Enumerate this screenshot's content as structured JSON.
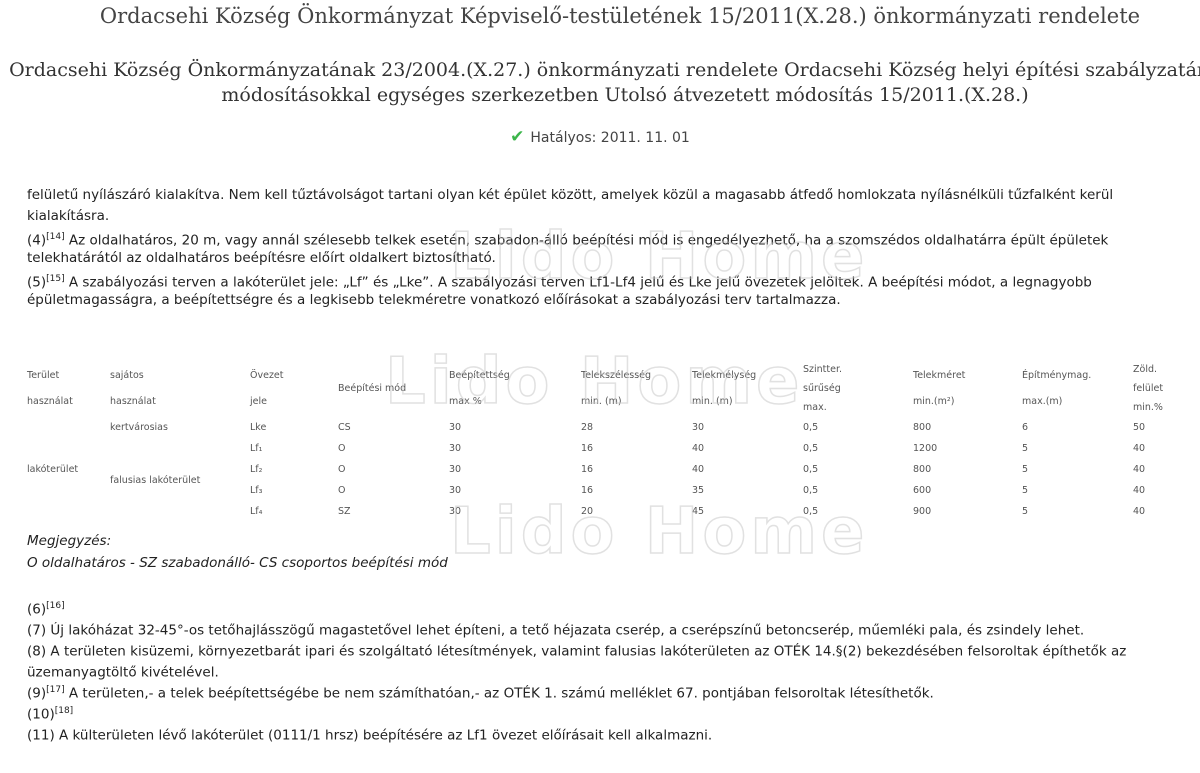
{
  "header": {
    "title": "Ordacsehi Község Önkormányzat Képviselő-testületének 15/2011(X.28.) önkormányzati rendelete",
    "subtitle_lines": [
      "Ordacsehi Község Önkormányzatának 23/2004.(X.27.) önkormányzati rendelete Ordacsehi Község helyi építési szabályzatáról a",
      "módosításokkal egységes szerkezetben Utolsó átvezetett módosítás 15/2011.(X.28.)"
    ],
    "status_icon": "check-icon",
    "status_color": "#3bb54a",
    "status": "Hatályos: 2011. 11. 01"
  },
  "watermark": "Lido Home",
  "paragraphs": [
    "felületű nyílászáró kialakítva. Nem kell tűztávolságot tartani olyan két épület között, amelyek közül a magasabb átfedő homlokzata nyílásnélküli tűzfalként kerül",
    "kialakításra.",
    {
      "pre": "(4)",
      "sup": "[14]",
      "text": " Az oldalhatáros, 20 m, vagy annál szélesebb telkek esetén, szabadon-álló beépítési mód is engedélyezhető, ha a szomszédos oldalhatárra épült épületek"
    },
    "telekhatárától az oldalhatáros beépítésre előírt oldalkert biztosítható.",
    {
      "pre": "(5)",
      "sup": "[15]",
      "text": " A szabályozási terven a lakóterület jele: „Lf” és „Lke”. A szabályozási terven Lf1-Lf4 jelű és Lke jelű övezetek jelöltek. A beépítési módot, a legnagyobb"
    },
    "épületmagasságra, a beépítettségre és a legkisebb telekméretre vonatkozó előírásokat a szabályozási terv tartalmazza."
  ],
  "table": {
    "headers": [
      [
        "Terület",
        "használat"
      ],
      [
        "sajátos",
        "használat"
      ],
      [
        "Övezet",
        "jele"
      ],
      [
        "Beépítési mód"
      ],
      [
        "Beépítettség",
        "max %"
      ],
      [
        "Telekszélesség",
        "min. (m)"
      ],
      [
        "Telekmélység",
        "min. (m)"
      ],
      [
        "Szintter.",
        "sűrűség",
        "max."
      ],
      [
        "Telekméret",
        "min.(m²)"
      ],
      [
        "Építménymag.",
        "max.(m)"
      ],
      [
        "Zöld.",
        "felület",
        "min.%"
      ]
    ],
    "area": "lakóterület",
    "groups": [
      "kertvárosias",
      "falusias lakóterület"
    ],
    "rows": [
      [
        "Lke",
        "CS",
        "30",
        "28",
        "30",
        "0,5",
        "800",
        "6",
        "50"
      ],
      [
        "Lf₁",
        "O",
        "30",
        "16",
        "40",
        "0,5",
        "1200",
        "5",
        "40"
      ],
      [
        "Lf₂",
        "O",
        "30",
        "16",
        "40",
        "0,5",
        "800",
        "5",
        "40"
      ],
      [
        "Lf₃",
        "O",
        "30",
        "16",
        "35",
        "0,5",
        "600",
        "5",
        "40"
      ],
      [
        "Lf₄",
        "SZ",
        "30",
        "20",
        "45",
        "0,5",
        "900",
        "5",
        "40"
      ]
    ]
  },
  "note": {
    "title": "Megjegyzés:",
    "text": "O oldalhatáros - SZ szabadonálló- CS csoportos beépítési mód"
  },
  "paragraphs2": [
    {
      "pre": "(6)",
      "sup": "[16]",
      "text": ""
    },
    {
      "pre": "",
      "sup": "",
      "text": "(7) Új lakóházat 32-45°-os tetőhajlásszögű magastetővel lehet építeni, a tető héjazata cserép, a cserépszínű betoncserép, műemléki pala, és zsindely lehet."
    },
    {
      "pre": "",
      "sup": "",
      "text": "(8) A területen kisüzemi, környezetbarát ipari és szolgáltató létesítmények, valamint falusias lakóterületen az OTÉK 14.§(2) bekezdésében felsoroltak építhetők az"
    },
    {
      "pre": "",
      "sup": "",
      "text": "üzemanyagtöltő kivételével."
    },
    {
      "pre": "(9)",
      "sup": "[17]",
      "text": " A területen,- a telek beépítettségébe be nem számíthatóan,- az OTÉK 1. számú melléklet 67. pontjában felsoroltak létesíthetők."
    },
    {
      "pre": "(10)",
      "sup": "[18]",
      "text": ""
    },
    {
      "pre": "",
      "sup": "",
      "text": "(11) A külterületen lévő lakóterület (0111/1 hrsz) beépítésére az Lf1 övezet előírásait kell alkalmazni."
    }
  ]
}
